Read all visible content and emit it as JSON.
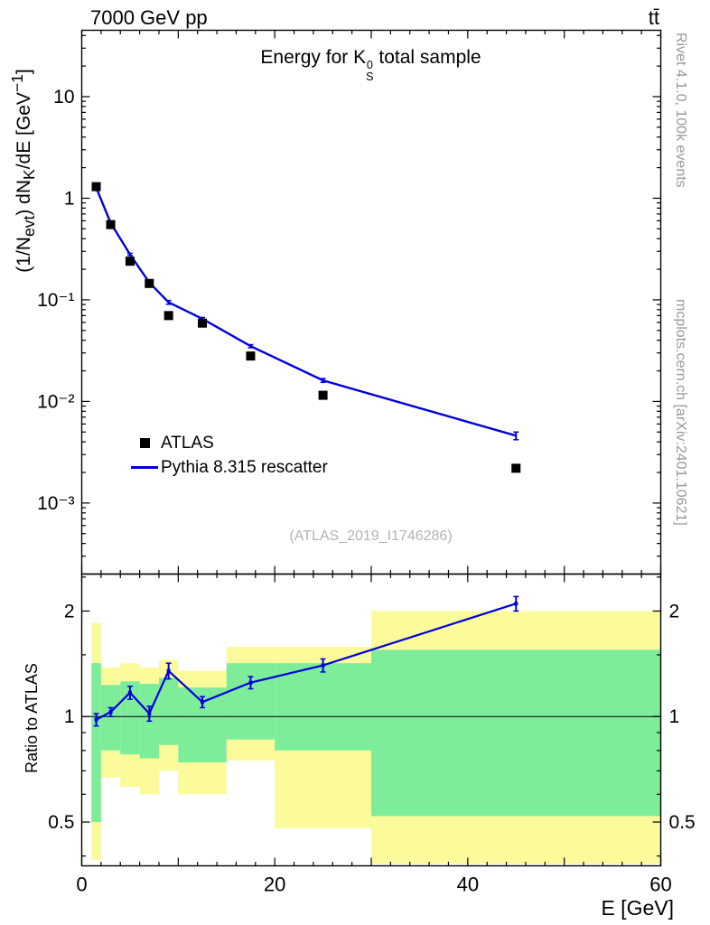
{
  "header": {
    "left": "7000 GeV pp",
    "right": "tt̄"
  },
  "side_notes": {
    "top_right": "Rivet 4.1.0,  100k events",
    "bottom_right": "mcplots.cern.ch [arXiv:2401.10621]"
  },
  "main_panel": {
    "title_html": "Energy for K<span class=\"stack\"><span>0</span><span>S</span></span> total sample",
    "ylabel_html": "(1/N<sub>evt</sub>) dN<sub>K</sub>/dE [GeV<sup>−1</sup>]",
    "watermark": "(ATLAS_2019_I1746286)",
    "legend": [
      {
        "label": "ATLAS",
        "marker": "square",
        "color": "#000000"
      },
      {
        "label": "Pythia 8.315 rescatter",
        "marker": "line",
        "color": "#0000dd"
      }
    ]
  },
  "ratio_panel": {
    "ylabel": "Ratio to ATLAS"
  },
  "xaxis": {
    "label": "E [GeV]"
  },
  "chart_data": {
    "type": "line",
    "title": "Energy for K_S^0 total sample",
    "xlabel": "E [GeV]",
    "ylabel": "(1/N_evt) dN_K/dE [GeV^-1]",
    "xlim": [
      0,
      60
    ],
    "x_major_ticks": [
      0,
      10,
      20,
      30,
      40,
      50,
      60
    ],
    "x_labeled_ticks": [
      0,
      20,
      40,
      60
    ],
    "x_minor_step": 2,
    "main": {
      "yscale": "log",
      "ylim": [
        0.0002,
        45
      ],
      "ytick_values": [
        10,
        1,
        0.1,
        0.01,
        0.001
      ],
      "ytick_labels": [
        "10",
        "1",
        "10⁻¹",
        "10⁻²",
        "10⁻³"
      ],
      "series": [
        {
          "name": "ATLAS",
          "type": "scatter",
          "marker": "square",
          "color": "#000000",
          "x": [
            1.5,
            3,
            5,
            7,
            9,
            12.5,
            17.5,
            25,
            45
          ],
          "y": [
            1.3,
            0.55,
            0.24,
            0.145,
            0.07,
            0.059,
            0.028,
            0.0115,
            0.0022
          ]
        },
        {
          "name": "Pythia 8.315 rescatter",
          "type": "line",
          "color": "#0000dd",
          "x": [
            1.5,
            3,
            5,
            7,
            9,
            12.5,
            17.5,
            25,
            45
          ],
          "y": [
            1.27,
            0.57,
            0.28,
            0.148,
            0.0945,
            0.065,
            0.035,
            0.0161,
            0.0046
          ],
          "yerr": [
            0.03,
            0.012,
            0.007,
            0.005,
            0.004,
            0.002,
            0.0012,
            0.0007,
            0.0004
          ]
        }
      ]
    },
    "ratio": {
      "yscale": "log",
      "ylim": [
        0.375,
        2.55
      ],
      "ytick_values": [
        2,
        1,
        0.5
      ],
      "ytick_labels": [
        "2",
        "1",
        "0.5"
      ],
      "y_minor_ticks": [
        0.4,
        0.6,
        0.7,
        0.8,
        0.9,
        1.5,
        2.5
      ],
      "reference_line": 1,
      "x": [
        1.5,
        3,
        5,
        7,
        9,
        12.5,
        17.5,
        25,
        45
      ],
      "y": [
        0.98,
        1.03,
        1.17,
        1.02,
        1.35,
        1.1,
        1.25,
        1.4,
        2.1
      ],
      "yerr": [
        0.04,
        0.03,
        0.05,
        0.05,
        0.07,
        0.04,
        0.05,
        0.06,
        0.1
      ],
      "band_colors": {
        "outer": "#fbfb9b",
        "inner": "#7eed9a"
      },
      "bands": [
        {
          "x0": 1,
          "x1": 2,
          "outer": [
            0.39,
            1.85
          ],
          "inner": [
            0.5,
            1.42
          ]
        },
        {
          "x0": 2,
          "x1": 4,
          "outer": [
            0.67,
            1.38
          ],
          "inner": [
            0.8,
            1.23
          ]
        },
        {
          "x0": 4,
          "x1": 6,
          "outer": [
            0.63,
            1.42
          ],
          "inner": [
            0.78,
            1.26
          ]
        },
        {
          "x0": 6,
          "x1": 8,
          "outer": [
            0.6,
            1.38
          ],
          "inner": [
            0.76,
            1.24
          ]
        },
        {
          "x0": 8,
          "x1": 10,
          "outer": [
            0.7,
            1.45
          ],
          "inner": [
            0.83,
            1.29
          ]
        },
        {
          "x0": 10,
          "x1": 15,
          "outer": [
            0.6,
            1.35
          ],
          "inner": [
            0.74,
            1.21
          ]
        },
        {
          "x0": 15,
          "x1": 20,
          "outer": [
            0.75,
            1.58
          ],
          "inner": [
            0.86,
            1.42
          ]
        },
        {
          "x0": 20,
          "x1": 30,
          "outer": [
            0.48,
            1.58
          ],
          "inner": [
            0.8,
            1.42
          ]
        },
        {
          "x0": 30,
          "x1": 60,
          "outer": [
            0.38,
            2.0
          ],
          "inner": [
            0.52,
            1.55
          ]
        }
      ]
    },
    "line_color": "#0000dd"
  }
}
